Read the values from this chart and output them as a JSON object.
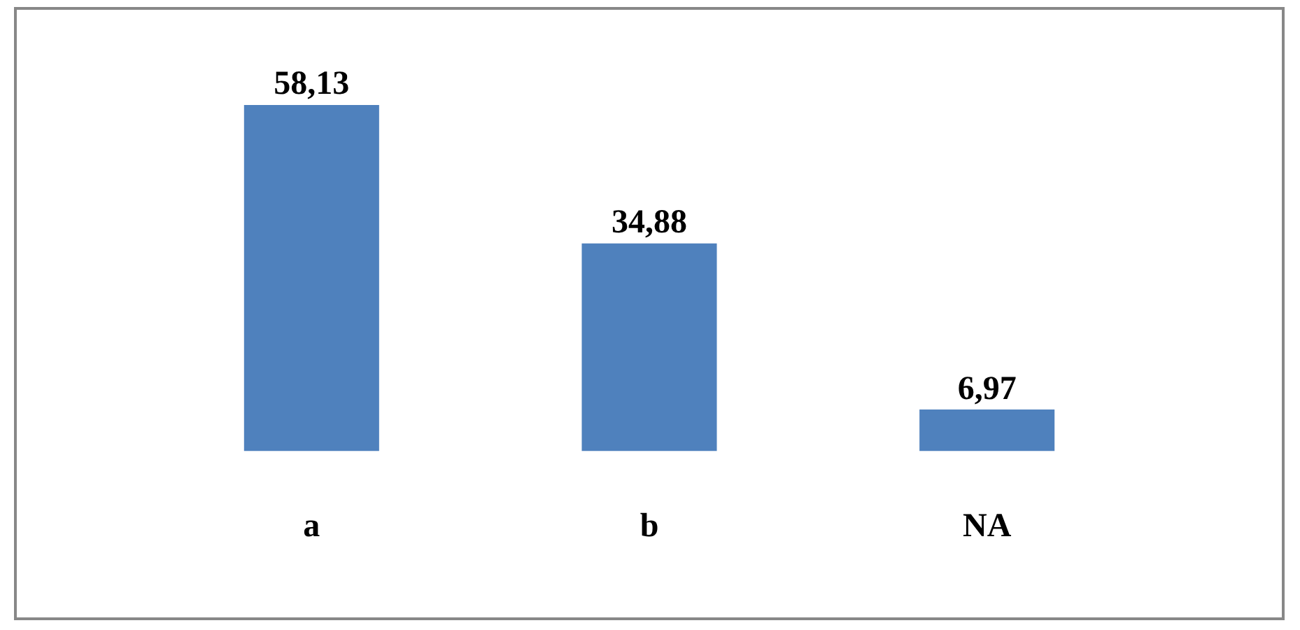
{
  "chart_data": {
    "type": "bar",
    "categories": [
      "a",
      "b",
      "NA"
    ],
    "values": [
      58.13,
      34.88,
      6.97
    ],
    "value_labels": [
      "58,13",
      "34,88",
      "6,97"
    ],
    "color": "#4f81bd",
    "grid": false,
    "legend": false,
    "tick_labels": "x"
  }
}
